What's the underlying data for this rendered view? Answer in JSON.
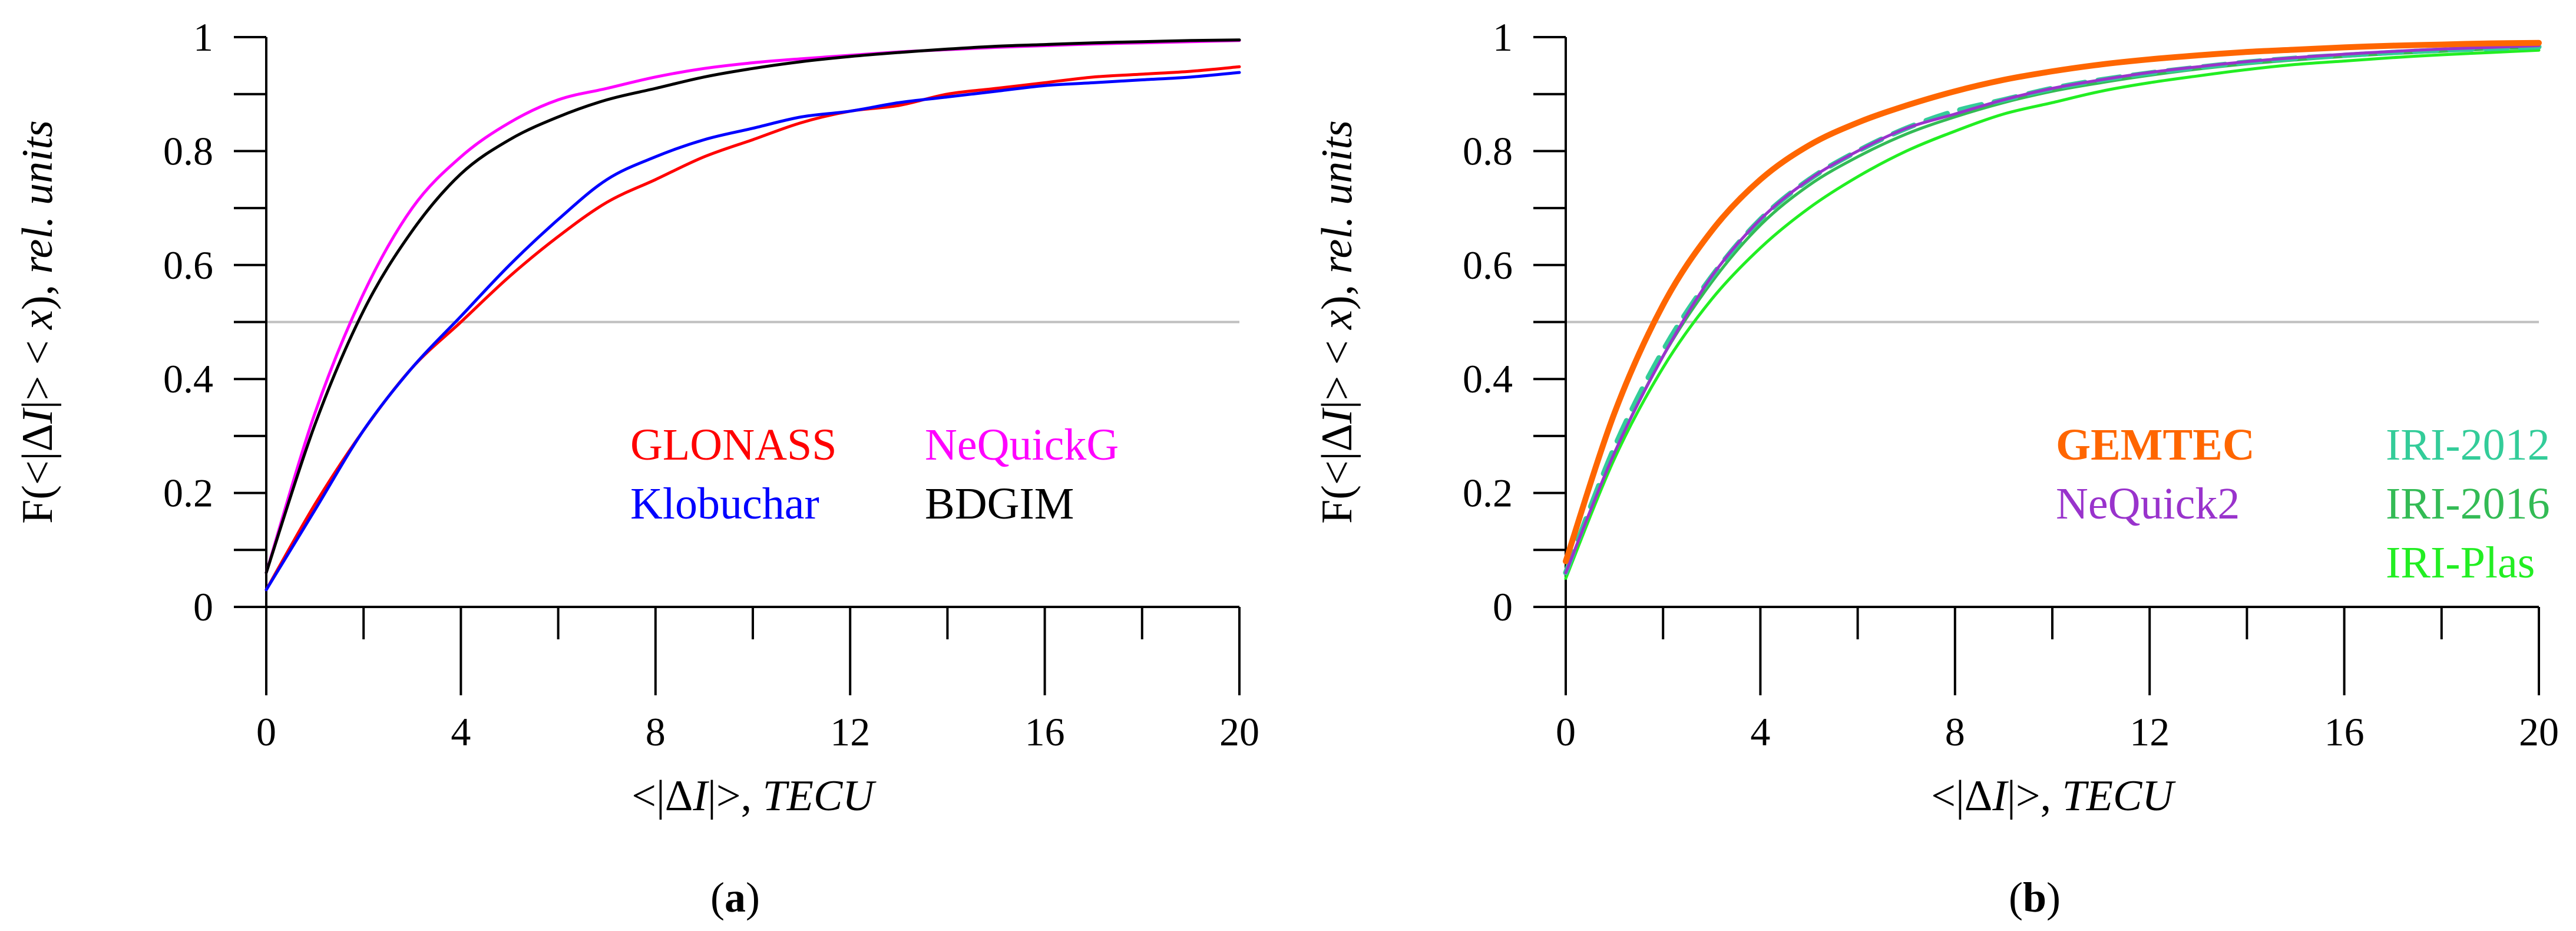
{
  "chart_data": [
    {
      "panel": "a",
      "type": "line",
      "caption": {
        "open": "(",
        "letter": "a",
        "close": ")"
      },
      "ylabel_parts": [
        "F(<|Δ",
        "I",
        "|> < ",
        "x",
        "), ",
        "rel. units"
      ],
      "xlabel_parts": [
        "<|Δ",
        "I",
        "|>, ",
        "TECU"
      ],
      "xlim": [
        0,
        20
      ],
      "ylim": [
        0,
        1
      ],
      "xticks": [
        0,
        4,
        8,
        12,
        16,
        20
      ],
      "xminor": [
        2,
        6,
        10,
        14,
        18
      ],
      "yticks": [
        0,
        0.2,
        0.4,
        0.6,
        0.8,
        1
      ],
      "yminor": [
        0.1,
        0.3,
        0.5,
        0.7,
        0.9
      ],
      "ytick_labels": [
        "0",
        "0.2",
        "0.4",
        "0.6",
        "0.8",
        "1"
      ],
      "reference_line": 0.5,
      "series": [
        {
          "name": "GLONASS",
          "color": "#ff0000",
          "bold": false,
          "dashed": false,
          "x": [
            0,
            1,
            2,
            3,
            4,
            5,
            6,
            7,
            8,
            9,
            10,
            11,
            12,
            13,
            14,
            15,
            16,
            17,
            18,
            19,
            20
          ],
          "values": [
            0.03,
            0.18,
            0.31,
            0.42,
            0.5,
            0.58,
            0.65,
            0.71,
            0.75,
            0.79,
            0.82,
            0.85,
            0.87,
            0.88,
            0.9,
            0.91,
            0.92,
            0.93,
            0.935,
            0.94,
            0.948
          ]
        },
        {
          "name": "Klobuchar",
          "color": "#0000ff",
          "bold": false,
          "dashed": false,
          "x": [
            0,
            1,
            2,
            3,
            4,
            5,
            6,
            7,
            8,
            9,
            10,
            11,
            12,
            13,
            14,
            15,
            16,
            17,
            18,
            19,
            20
          ],
          "values": [
            0.03,
            0.17,
            0.31,
            0.42,
            0.51,
            0.6,
            0.68,
            0.75,
            0.79,
            0.82,
            0.84,
            0.86,
            0.87,
            0.885,
            0.895,
            0.905,
            0.915,
            0.92,
            0.925,
            0.93,
            0.938
          ]
        },
        {
          "name": "NeQuickG",
          "color": "#ff00ff",
          "bold": false,
          "dashed": false,
          "x": [
            0,
            1,
            2,
            3,
            4,
            5,
            6,
            7,
            8,
            9,
            10,
            11,
            12,
            13,
            14,
            15,
            16,
            17,
            18,
            19,
            20
          ],
          "values": [
            0.06,
            0.34,
            0.55,
            0.7,
            0.79,
            0.85,
            0.89,
            0.91,
            0.93,
            0.945,
            0.955,
            0.962,
            0.968,
            0.974,
            0.978,
            0.982,
            0.985,
            0.988,
            0.99,
            0.992,
            0.994
          ]
        },
        {
          "name": "BDGIM",
          "color": "#000000",
          "bold": false,
          "dashed": false,
          "x": [
            0,
            1,
            2,
            3,
            4,
            5,
            6,
            7,
            8,
            9,
            10,
            11,
            12,
            13,
            14,
            15,
            16,
            17,
            18,
            19,
            20
          ],
          "values": [
            0.06,
            0.32,
            0.52,
            0.66,
            0.76,
            0.82,
            0.86,
            0.89,
            0.91,
            0.93,
            0.945,
            0.957,
            0.966,
            0.973,
            0.979,
            0.984,
            0.987,
            0.99,
            0.992,
            0.994,
            0.995
          ]
        }
      ],
      "legend": [
        {
          "series": "GLONASS",
          "col": 0,
          "row": 0
        },
        {
          "series": "NeQuickG",
          "col": 1,
          "row": 0
        },
        {
          "series": "Klobuchar",
          "col": 0,
          "row": 1
        },
        {
          "series": "BDGIM",
          "col": 1,
          "row": 1
        }
      ]
    },
    {
      "panel": "b",
      "type": "line",
      "caption": {
        "open": "(",
        "letter": "b",
        "close": ")"
      },
      "ylabel_parts": [
        "F(<|Δ",
        "I",
        "|> < ",
        "x",
        "), ",
        "rel. units"
      ],
      "xlabel_parts": [
        "<|Δ",
        "I",
        "|>, ",
        "TECU"
      ],
      "xlim": [
        0,
        20
      ],
      "ylim": [
        0,
        1
      ],
      "xticks": [
        0,
        4,
        8,
        12,
        16,
        20
      ],
      "xminor": [
        2,
        6,
        10,
        14,
        18
      ],
      "yticks": [
        0,
        0.2,
        0.4,
        0.6,
        0.8,
        1
      ],
      "yminor": [
        0.1,
        0.3,
        0.5,
        0.7,
        0.9
      ],
      "ytick_labels": [
        "0",
        "0.2",
        "0.4",
        "0.6",
        "0.8",
        "1"
      ],
      "reference_line": 0.5,
      "series": [
        {
          "name": "IRI-Plas",
          "color": "#22ee22",
          "bold": false,
          "dashed": false,
          "x": [
            0,
            1,
            2,
            3,
            4,
            5,
            6,
            7,
            8,
            9,
            10,
            11,
            12,
            13,
            14,
            15,
            16,
            17,
            18,
            19,
            20
          ],
          "values": [
            0.05,
            0.26,
            0.42,
            0.54,
            0.63,
            0.7,
            0.755,
            0.8,
            0.835,
            0.865,
            0.885,
            0.905,
            0.92,
            0.932,
            0.943,
            0.952,
            0.958,
            0.964,
            0.969,
            0.973,
            0.977
          ]
        },
        {
          "name": "IRI-2016",
          "color": "#33bb55",
          "bold": false,
          "dashed": false,
          "x": [
            0,
            1,
            2,
            3,
            4,
            5,
            6,
            7,
            8,
            9,
            10,
            11,
            12,
            13,
            14,
            15,
            16,
            17,
            18,
            19,
            20
          ],
          "values": [
            0.06,
            0.27,
            0.44,
            0.57,
            0.67,
            0.74,
            0.79,
            0.83,
            0.86,
            0.885,
            0.905,
            0.92,
            0.933,
            0.944,
            0.953,
            0.96,
            0.966,
            0.971,
            0.975,
            0.979,
            0.982
          ]
        },
        {
          "name": "IRI-2012",
          "color": "#33cc99",
          "bold": false,
          "dashed": true,
          "x": [
            0,
            1,
            2,
            3,
            4,
            5,
            6,
            7,
            8,
            9,
            10,
            11,
            12,
            13,
            14,
            15,
            16,
            17,
            18,
            19,
            20
          ],
          "values": [
            0.06,
            0.28,
            0.45,
            0.58,
            0.68,
            0.75,
            0.8,
            0.84,
            0.87,
            0.89,
            0.91,
            0.925,
            0.937,
            0.947,
            0.956,
            0.963,
            0.968,
            0.973,
            0.977,
            0.98,
            0.983
          ]
        },
        {
          "name": "NeQuick2",
          "color": "#9933cc",
          "bold": false,
          "dashed": false,
          "x": [
            0,
            1,
            2,
            3,
            4,
            5,
            6,
            7,
            8,
            9,
            10,
            11,
            12,
            13,
            14,
            15,
            16,
            17,
            18,
            19,
            20
          ],
          "values": [
            0.06,
            0.27,
            0.44,
            0.58,
            0.68,
            0.75,
            0.8,
            0.84,
            0.865,
            0.89,
            0.91,
            0.925,
            0.938,
            0.948,
            0.957,
            0.964,
            0.97,
            0.975,
            0.979,
            0.982,
            0.985
          ]
        },
        {
          "name": "GEMTEC",
          "color": "#ff6600",
          "bold": true,
          "dashed": false,
          "x": [
            0,
            1,
            2,
            3,
            4,
            5,
            6,
            7,
            8,
            9,
            10,
            11,
            12,
            13,
            14,
            15,
            16,
            17,
            18,
            19,
            20
          ],
          "values": [
            0.08,
            0.34,
            0.53,
            0.66,
            0.75,
            0.81,
            0.85,
            0.88,
            0.905,
            0.925,
            0.94,
            0.952,
            0.961,
            0.968,
            0.974,
            0.978,
            0.982,
            0.985,
            0.987,
            0.989,
            0.99
          ]
        }
      ],
      "legend": [
        {
          "series": "GEMTEC",
          "col": 0,
          "row": 0
        },
        {
          "series": "IRI-2012",
          "col": 1,
          "row": 0
        },
        {
          "series": "NeQuick2",
          "col": 0,
          "row": 1
        },
        {
          "series": "IRI-2016",
          "col": 1,
          "row": 1
        },
        {
          "series": "IRI-Plas",
          "col": 1,
          "row": 2
        }
      ]
    }
  ]
}
